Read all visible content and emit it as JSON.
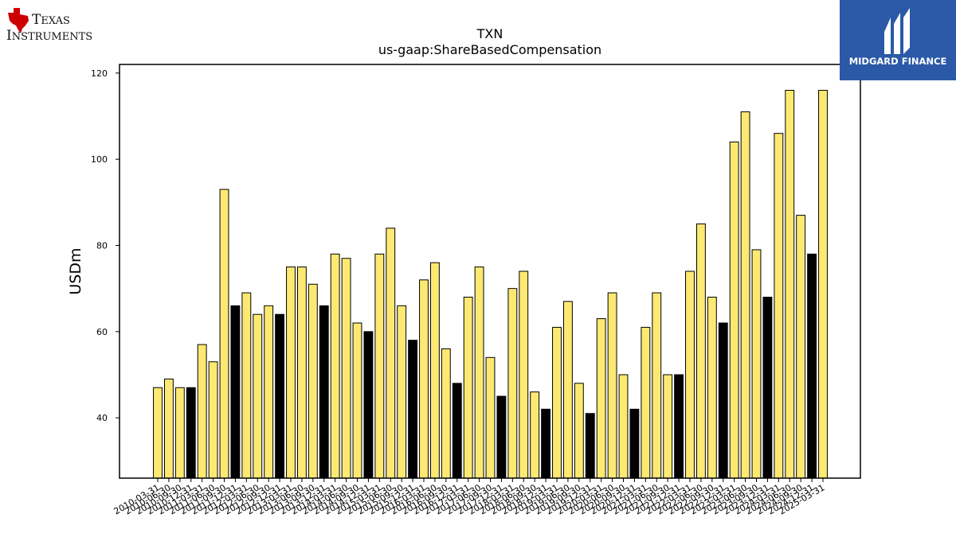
{
  "brand": {
    "left_logo": "TEXAS INSTRUMENTS",
    "right_logo": "MIDGARD FINANCE"
  },
  "colors": {
    "normal_bar": "#fde972",
    "highlight_bar": "#000000",
    "mf_bg": "#2b59a8"
  },
  "chart_data": {
    "type": "bar",
    "title": "TXN",
    "subtitle": "us-gaap:ShareBasedCompensation",
    "ylabel": "USDm",
    "xlabel": "",
    "ylim": [
      26,
      122
    ],
    "yticks": [
      40,
      60,
      80,
      100,
      120
    ],
    "grid": false,
    "categories": [
      "2010-03-31",
      "2010-06-30",
      "2010-09-30",
      "2010-12-31",
      "2011-03-31",
      "2011-06-30",
      "2011-09-30",
      "2011-12-31",
      "2012-03-31",
      "2012-06-30",
      "2012-09-30",
      "2012-12-31",
      "2013-03-31",
      "2013-06-30",
      "2013-09-30",
      "2013-12-31",
      "2014-03-31",
      "2014-06-30",
      "2014-09-30",
      "2014-12-31",
      "2015-03-31",
      "2015-06-30",
      "2015-09-30",
      "2015-12-31",
      "2016-03-31",
      "2016-06-30",
      "2016-09-30",
      "2016-12-31",
      "2017-03-31",
      "2017-06-30",
      "2017-09-30",
      "2017-12-31",
      "2018-03-31",
      "2018-06-30",
      "2018-09-30",
      "2018-12-31",
      "2019-03-31",
      "2019-06-30",
      "2019-09-30",
      "2019-12-31",
      "2020-03-31",
      "2020-06-30",
      "2020-09-30",
      "2020-12-31",
      "2021-03-31",
      "2021-06-30",
      "2021-09-30",
      "2021-12-31",
      "2022-03-31",
      "2022-06-30",
      "2022-09-30",
      "2022-12-31",
      "2023-03-31",
      "2023-06-30",
      "2023-09-30",
      "2023-12-31",
      "2024-03-31",
      "2024-06-30",
      "2024-09-30",
      "2024-12-31",
      "2025-03-31"
    ],
    "values": [
      47,
      49,
      47,
      47,
      57,
      53,
      93,
      66,
      69,
      64,
      66,
      64,
      75,
      75,
      71,
      66,
      78,
      77,
      62,
      60,
      78,
      84,
      66,
      58,
      72,
      76,
      56,
      48,
      68,
      75,
      54,
      45,
      70,
      74,
      46,
      42,
      61,
      67,
      48,
      41,
      63,
      69,
      50,
      42,
      61,
      69,
      50,
      50,
      74,
      85,
      68,
      62,
      104,
      111,
      79,
      68,
      106,
      116,
      87,
      78,
      116
    ],
    "highlight": [
      false,
      false,
      false,
      true,
      false,
      false,
      false,
      true,
      false,
      false,
      false,
      true,
      false,
      false,
      false,
      true,
      false,
      false,
      false,
      true,
      false,
      false,
      false,
      true,
      false,
      false,
      false,
      true,
      false,
      false,
      false,
      true,
      false,
      false,
      false,
      true,
      false,
      false,
      false,
      true,
      false,
      false,
      false,
      true,
      false,
      false,
      false,
      true,
      false,
      false,
      false,
      true,
      false,
      false,
      false,
      true,
      false,
      false,
      false,
      true,
      false
    ]
  }
}
